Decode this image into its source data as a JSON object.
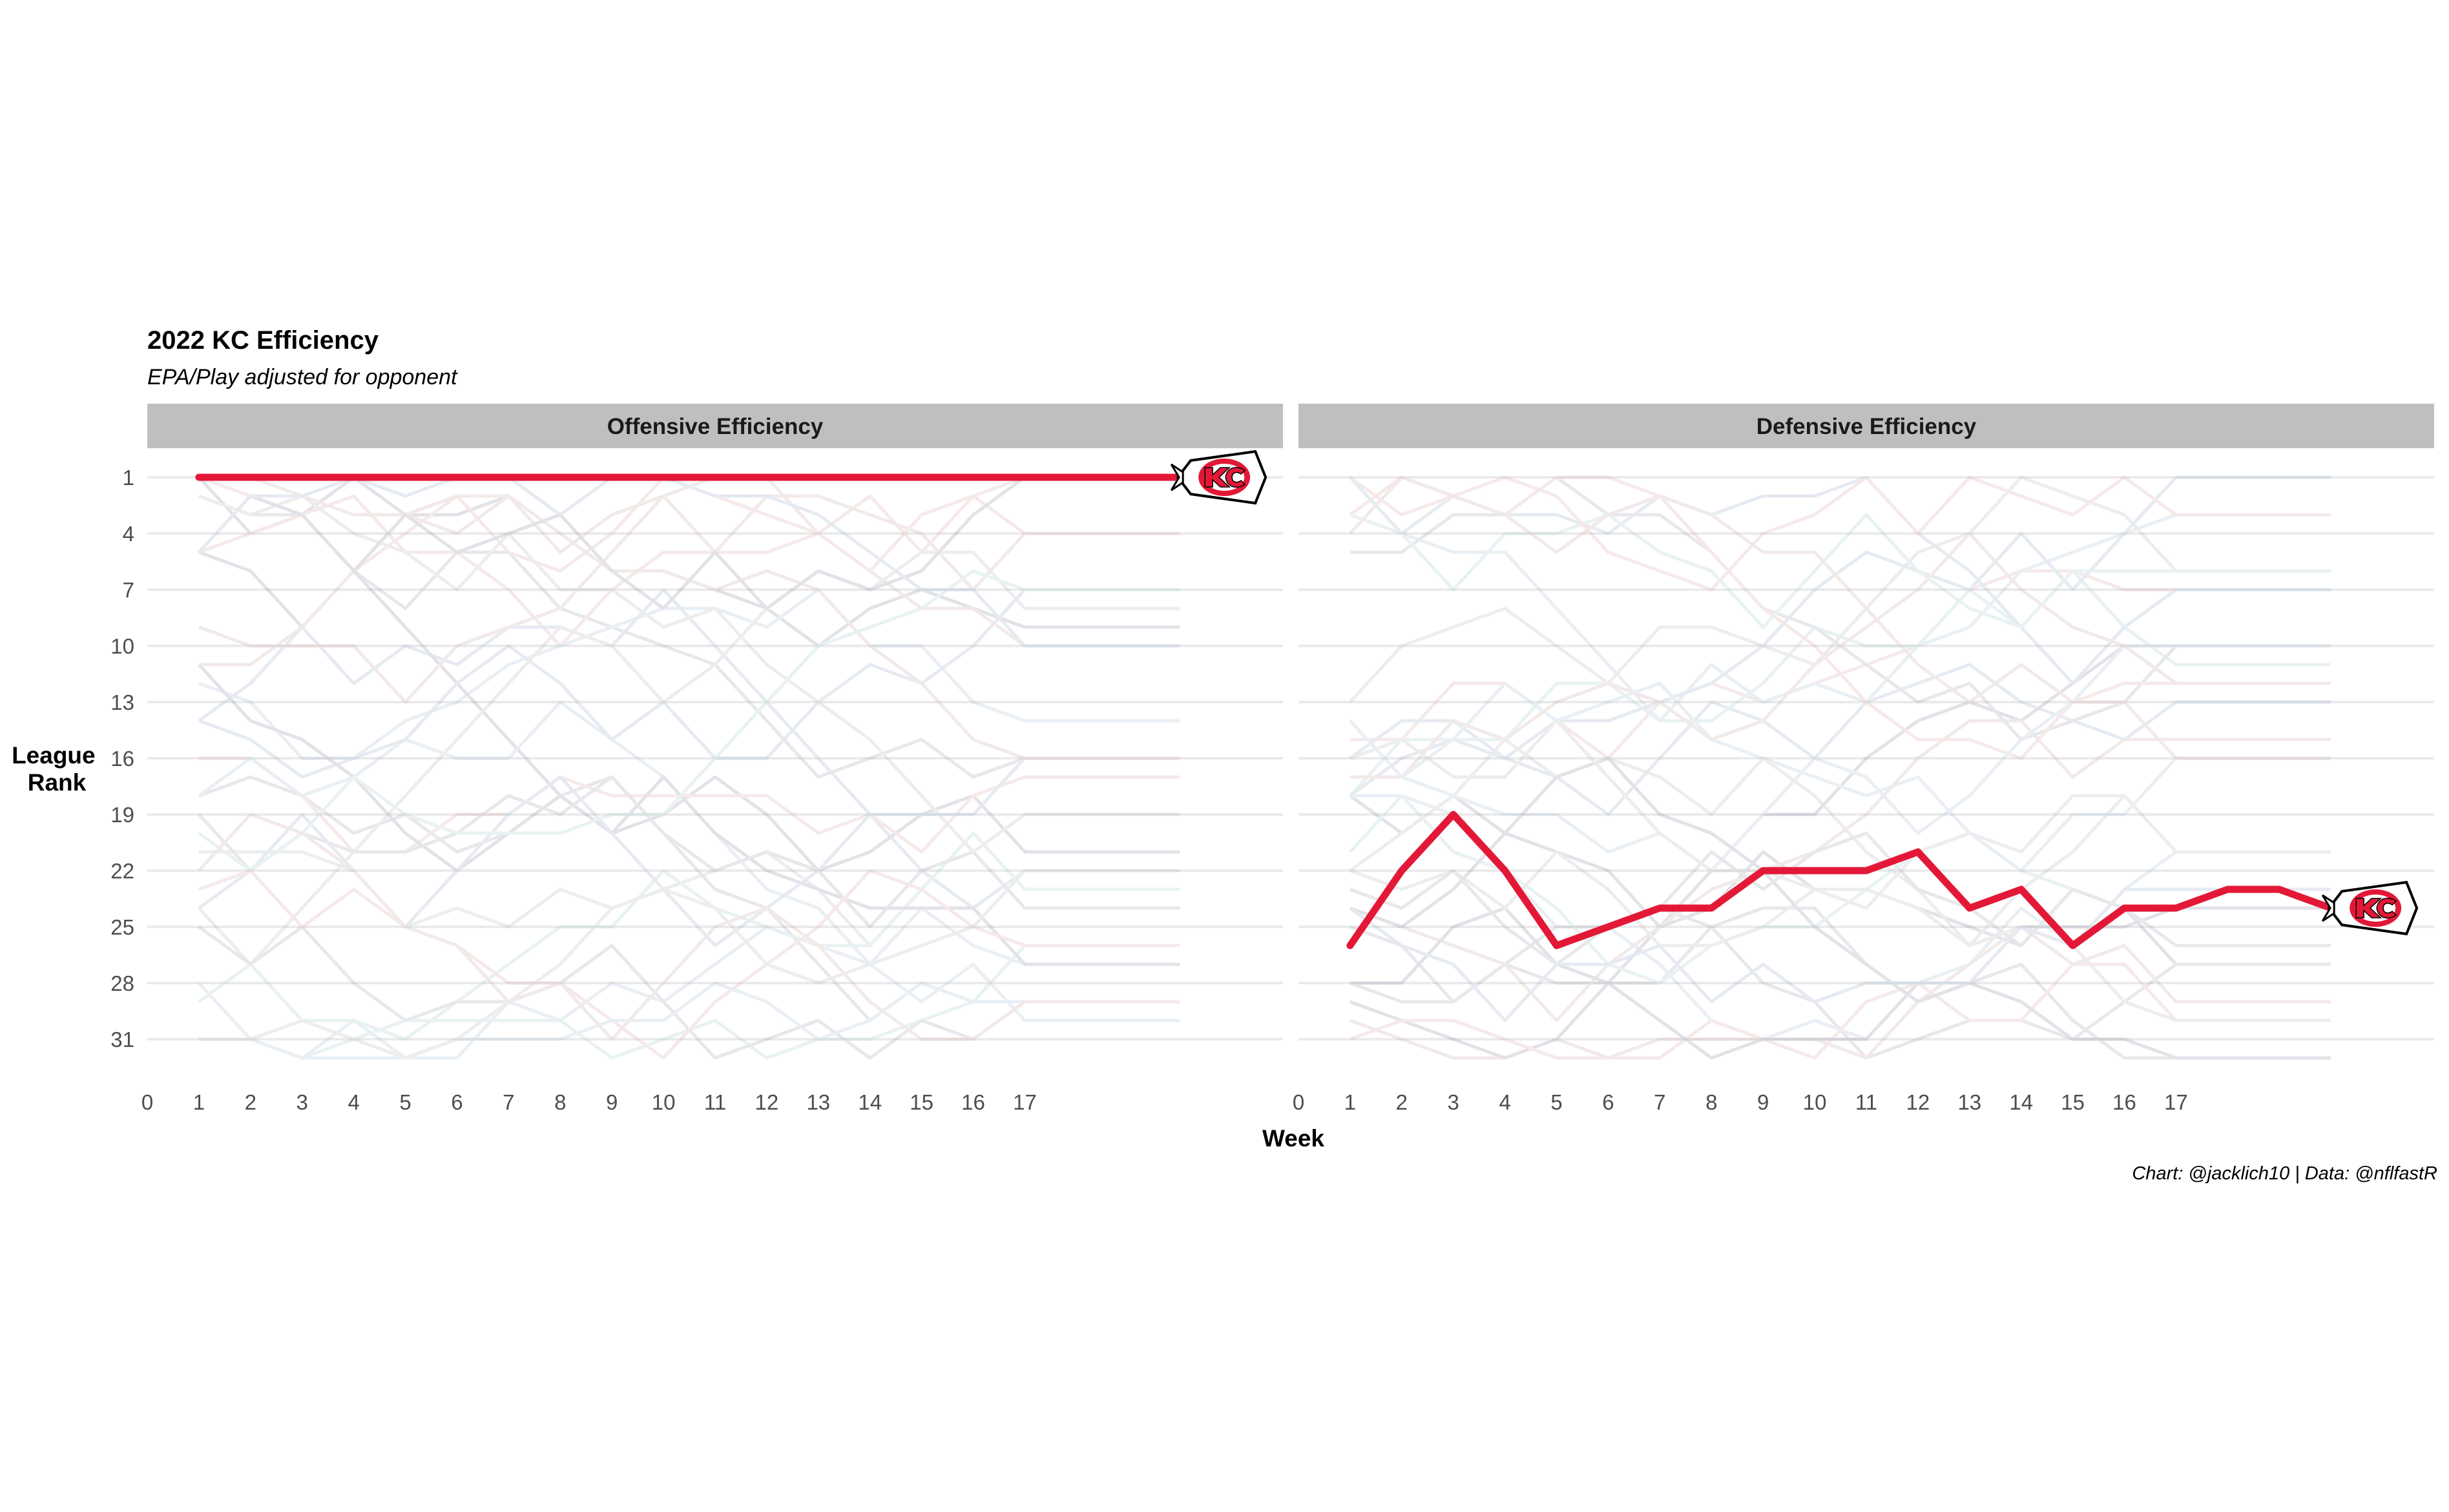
{
  "chart_data": {
    "type": "line",
    "title": "2022 KC Efficiency",
    "subtitle": "EPA/Play adjusted for opponent",
    "ylabel": "League\nRank",
    "xlabel": "Week",
    "caption": "Chart: @jacklich10 | Data: @nflfastR",
    "highlight_color": "#E31837",
    "x_ticks": [
      0,
      1,
      2,
      3,
      4,
      5,
      6,
      7,
      8,
      9,
      10,
      11,
      12,
      13,
      14,
      15,
      16,
      17
    ],
    "y_ticks": [
      1,
      4,
      7,
      10,
      13,
      16,
      19,
      22,
      25,
      28,
      31
    ],
    "ylim": [
      32,
      1
    ],
    "xlim": [
      0,
      22
    ],
    "y_reversed": true,
    "grid": "horizontal",
    "marker_icon": "chiefs-arrowhead-logo",
    "panels": [
      {
        "strip": "Offensive Efficiency",
        "highlight": {
          "name": "KC",
          "weeks": [
            1,
            2,
            3,
            4,
            5,
            6,
            7,
            8,
            9,
            10,
            11,
            12,
            13,
            14,
            15,
            16,
            17,
            18,
            19,
            20
          ],
          "ranks": [
            1,
            1,
            1,
            1,
            1,
            1,
            1,
            1,
            1,
            1,
            1,
            1,
            1,
            1,
            1,
            1,
            1,
            1,
            1,
            1
          ]
        }
      },
      {
        "strip": "Defensive Efficiency",
        "highlight": {
          "name": "KC",
          "weeks": [
            1,
            2,
            3,
            4,
            5,
            6,
            7,
            8,
            9,
            10,
            11,
            12,
            13,
            14,
            15,
            16,
            17,
            18,
            19,
            20
          ],
          "ranks": [
            26,
            22,
            19,
            22,
            26,
            25,
            24,
            24,
            22,
            22,
            22,
            21,
            24,
            23,
            26,
            24,
            24,
            23,
            23,
            24
          ]
        }
      }
    ],
    "background_teams": {
      "count": 31,
      "colors": [
        "#7f7f9a",
        "#9a9aaa",
        "#d9a0a0",
        "#a0b8d0",
        "#b0b0b0",
        "#8fa8c8",
        "#c8a0a0",
        "#a0c8c8"
      ],
      "style": "faint lines"
    }
  }
}
